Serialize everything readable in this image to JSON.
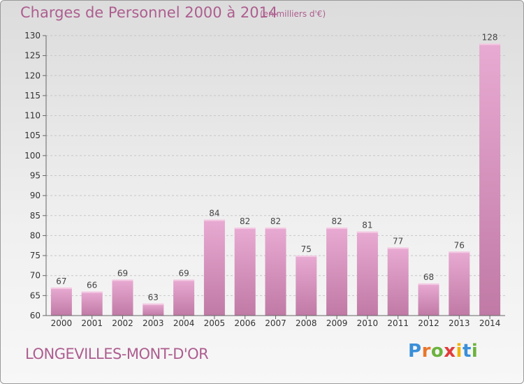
{
  "header": {
    "title": "Charges de Personnel 2000 à 2014",
    "unit": "(en milliers d'€)"
  },
  "footer": {
    "commune": "LONGEVILLES-MONT-D'OR",
    "logo": "Proxiti"
  },
  "colors": {
    "text_accent": "#ad5e8f",
    "bar_light": "#e3a2ca",
    "bar_dark": "#c17aa6",
    "grid": "#c8c8c8"
  },
  "chart_data": {
    "type": "bar",
    "title": "Charges de Personnel 2000 à 2014",
    "subtitle": "(en milliers d'€)",
    "xlabel": "",
    "ylabel": "",
    "categories": [
      "2000",
      "2001",
      "2002",
      "2003",
      "2004",
      "2005",
      "2006",
      "2007",
      "2008",
      "2009",
      "2010",
      "2011",
      "2012",
      "2013",
      "2014"
    ],
    "values": [
      67,
      66,
      69,
      63,
      69,
      84,
      82,
      82,
      75,
      82,
      81,
      77,
      68,
      76,
      128
    ],
    "ylim": [
      60,
      130
    ],
    "yticks": [
      60,
      65,
      70,
      75,
      80,
      85,
      90,
      95,
      100,
      105,
      110,
      115,
      120,
      125,
      130
    ],
    "grid": "horizontal dashed",
    "data_labels": true
  }
}
